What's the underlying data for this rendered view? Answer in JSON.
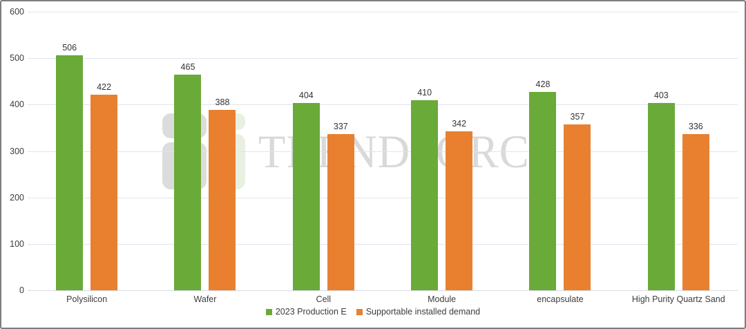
{
  "chart_data": {
    "type": "bar",
    "title": "",
    "categories": [
      "Polysilicon",
      "Wafer",
      "Cell",
      "Module",
      "encapsulate",
      "High Purity Quartz Sand"
    ],
    "series": [
      {
        "name": "2023 Production E",
        "color": "#6AAA38",
        "values": [
          506,
          465,
          404,
          410,
          428,
          403
        ]
      },
      {
        "name": "Supportable installed demand",
        "color": "#E88030",
        "values": [
          422,
          388,
          337,
          342,
          357,
          336
        ]
      }
    ],
    "ylim": [
      0,
      600
    ],
    "yticks": [
      0,
      100,
      200,
      300,
      400,
      500,
      600
    ],
    "grid": true,
    "gridline_color": "#dfe5ee",
    "legend_position": "bottom"
  },
  "watermark": {
    "text": "TRENDFORCE",
    "text_color": "#d9d9d9",
    "logo_gray": "#dcdcdc",
    "logo_green": "#e9f0e2"
  }
}
